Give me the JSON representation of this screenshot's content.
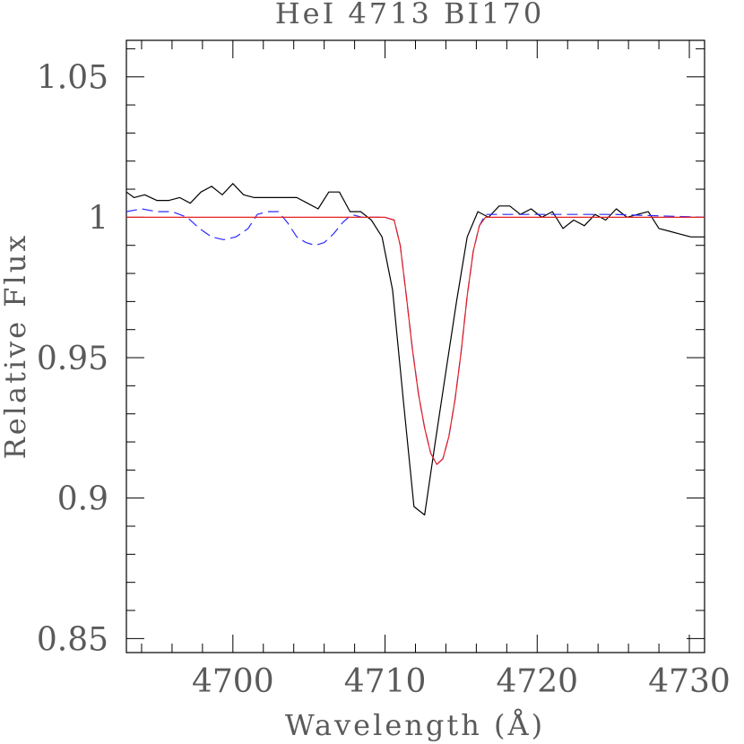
{
  "chart_data": {
    "type": "line",
    "title": "HeI 4713 BI170",
    "xlabel": "Wavelength (Å)",
    "ylabel": "Relative Flux",
    "xlim": [
      4693,
      4731
    ],
    "ylim": [
      0.845,
      1.063
    ],
    "x_ticks": [
      4700,
      4710,
      4720,
      4730
    ],
    "x_tick_labels": [
      "4700",
      "4710",
      "4720",
      "4730"
    ],
    "y_ticks": [
      0.85,
      0.9,
      0.95,
      1.0,
      1.05
    ],
    "y_tick_labels": [
      "0.85",
      "0.9",
      "0.95",
      "1",
      "1.05"
    ],
    "grid": false,
    "series": [
      {
        "color": "#000000",
        "style": "solid",
        "x": [
          4693.0,
          4693.5,
          4694.2,
          4695.0,
          4695.8,
          4696.5,
          4697.2,
          4697.9,
          4698.6,
          4699.3,
          4700.0,
          4700.7,
          4701.4,
          4702.1,
          4702.8,
          4703.5,
          4704.2,
          4704.9,
          4705.6,
          4706.3,
          4707.0,
          4707.7,
          4708.4,
          4709.1,
          4709.8,
          4710.5,
          4711.2,
          4711.9,
          4712.6,
          4713.3,
          4714.0,
          4714.7,
          4715.4,
          4716.1,
          4716.8,
          4717.5,
          4718.2,
          4718.9,
          4719.6,
          4720.3,
          4721.0,
          4721.7,
          4722.4,
          4723.1,
          4723.8,
          4724.5,
          4725.2,
          4725.9,
          4726.6,
          4727.3,
          4728.0,
          4728.7,
          4729.4,
          4730.1,
          4731.0
        ],
        "y": [
          1.009,
          1.007,
          1.008,
          1.006,
          1.006,
          1.007,
          1.005,
          1.009,
          1.011,
          1.008,
          1.012,
          1.008,
          1.007,
          1.007,
          1.007,
          1.007,
          1.007,
          1.005,
          1.003,
          1.009,
          1.009,
          1.002,
          1.002,
          0.999,
          0.993,
          0.974,
          0.935,
          0.897,
          0.894,
          0.92,
          0.945,
          0.97,
          0.993,
          1.002,
          1.0,
          1.004,
          1.004,
          1.001,
          1.003,
          1.0,
          1.002,
          0.996,
          0.999,
          0.997,
          1.001,
          0.999,
          1.003,
          1.0,
          1.001,
          1.002,
          0.996,
          0.995,
          0.994,
          0.993,
          0.993
        ]
      },
      {
        "color": "#2b2bff",
        "style": "dashed",
        "x": [
          4693.0,
          4694.0,
          4695.0,
          4696.0,
          4697.0,
          4697.8,
          4698.6,
          4699.4,
          4700.2,
          4701.0,
          4701.6,
          4702.3,
          4703.0,
          4703.6,
          4704.2,
          4704.8,
          4705.4,
          4706.0,
          4706.6,
          4707.2,
          4707.8,
          4708.5,
          4709.2,
          4710.0,
          4710.6,
          4711.0,
          4711.4,
          4711.8,
          4712.2,
          4712.6,
          4713.0,
          4713.4,
          4713.8,
          4714.2,
          4714.6,
          4715.0,
          4715.4,
          4715.8,
          4716.2,
          4716.6,
          4717.2,
          4720.0,
          4725.0,
          4731.0
        ],
        "y": [
          1.002,
          1.003,
          1.002,
          1.002,
          1.0,
          0.996,
          0.993,
          0.992,
          0.993,
          0.996,
          1.001,
          1.002,
          1.002,
          0.998,
          0.993,
          0.991,
          0.99,
          0.991,
          0.994,
          0.998,
          1.001,
          1.0,
          1.0,
          1.0,
          0.999,
          0.99,
          0.972,
          0.953,
          0.937,
          0.925,
          0.916,
          0.912,
          0.914,
          0.922,
          0.935,
          0.952,
          0.972,
          0.988,
          0.997,
          1.001,
          1.001,
          1.001,
          1.001,
          1.0
        ]
      },
      {
        "color": "#e62020",
        "style": "solid",
        "x": [
          4693.0,
          4700.0,
          4705.0,
          4709.0,
          4710.0,
          4710.6,
          4711.0,
          4711.4,
          4711.8,
          4712.2,
          4712.6,
          4713.0,
          4713.4,
          4713.8,
          4714.2,
          4714.6,
          4715.0,
          4715.4,
          4715.8,
          4716.2,
          4716.6,
          4717.2,
          4720.0,
          4725.0,
          4731.0
        ],
        "y": [
          1.0,
          1.0,
          1.0,
          1.0,
          1.0,
          0.999,
          0.99,
          0.972,
          0.953,
          0.937,
          0.925,
          0.916,
          0.912,
          0.914,
          0.922,
          0.935,
          0.952,
          0.972,
          0.988,
          0.997,
          1.0,
          1.0,
          1.0,
          1.0,
          1.0
        ]
      }
    ]
  }
}
